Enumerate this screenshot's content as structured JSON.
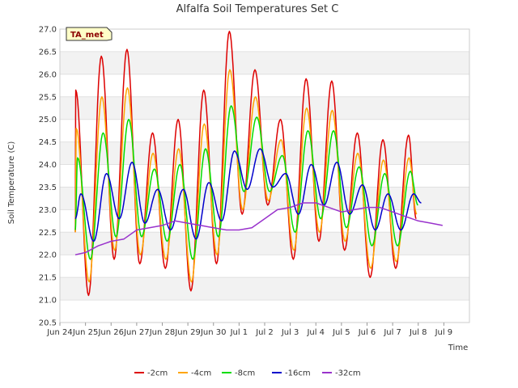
{
  "chart_data": {
    "type": "line",
    "title": "Alfalfa Soil Temperatures Set C",
    "xlabel": "Time",
    "ylabel": "Soil Temperature (C)",
    "badge": "TA_met",
    "ylim": [
      20.5,
      27.0
    ],
    "yticks": [
      "20.5",
      "21.0",
      "21.5",
      "22.0",
      "22.5",
      "23.0",
      "23.5",
      "24.0",
      "24.5",
      "25.0",
      "25.5",
      "26.0",
      "26.5",
      "27.0"
    ],
    "xlim": [
      0,
      16
    ],
    "xticks": [
      "Jun 24",
      "Jun 25",
      "Jun 26",
      "Jun 27",
      "Jun 28",
      "Jun 29",
      "Jun 30",
      "Jul 1",
      "Jul 2",
      "Jul 3",
      "Jul 4",
      "Jul 5",
      "Jul 6",
      "Jul 7",
      "Jul 8",
      "Jul 9"
    ],
    "grid": true,
    "legend_position": "bottom",
    "series": [
      {
        "name": "-2cm",
        "color": "#dd0000",
        "phase": 0.62,
        "lo": [
          20.7,
          21.1,
          21.9,
          21.8,
          21.7,
          21.2,
          21.8,
          22.9,
          23.1,
          21.9,
          22.3,
          22.1,
          21.5,
          21.7
        ],
        "hi": [
          25.65,
          26.4,
          26.55,
          24.7,
          25.0,
          25.65,
          26.95,
          26.1,
          25.0,
          25.9,
          25.85,
          24.7,
          24.55,
          24.65
        ],
        "start": 22.5,
        "end": 22.8
      },
      {
        "name": "-4cm",
        "color": "#ffa500",
        "phase": 0.64,
        "lo": [
          20.9,
          21.4,
          22.1,
          22.0,
          21.9,
          21.4,
          22.0,
          23.0,
          23.2,
          22.1,
          22.5,
          22.3,
          21.7,
          21.85
        ],
        "hi": [
          24.8,
          25.5,
          25.7,
          24.25,
          24.35,
          24.9,
          26.1,
          25.5,
          24.55,
          25.25,
          25.2,
          24.25,
          24.1,
          24.15
        ],
        "start": 22.5,
        "end": 22.9
      },
      {
        "name": "-8cm",
        "color": "#00dd00",
        "phase": 0.69,
        "lo": [
          21.5,
          21.9,
          22.4,
          22.4,
          22.3,
          21.9,
          22.4,
          23.4,
          23.4,
          22.5,
          22.8,
          22.6,
          22.2,
          22.2
        ],
        "hi": [
          24.15,
          24.7,
          25.0,
          23.9,
          24.0,
          24.35,
          25.3,
          25.05,
          24.2,
          24.75,
          24.75,
          23.95,
          23.8,
          23.85
        ],
        "start": 22.55,
        "end": 23.1
      },
      {
        "name": "-16cm",
        "color": "#0000cc",
        "phase": 0.82,
        "lo": [
          22.0,
          22.3,
          22.8,
          22.7,
          22.55,
          22.35,
          22.75,
          23.45,
          23.5,
          22.9,
          23.1,
          22.9,
          22.55,
          22.55
        ],
        "hi": [
          23.35,
          23.8,
          24.05,
          23.45,
          23.45,
          23.6,
          24.3,
          24.35,
          23.8,
          24.0,
          24.05,
          23.55,
          23.35,
          23.35
        ],
        "start": 22.8,
        "end": 23.15
      },
      {
        "name": "-32cm",
        "color": "#9932cc",
        "x": [
          0.6,
          1.0,
          1.5,
          2.0,
          2.5,
          3.0,
          3.5,
          4.0,
          4.5,
          5.0,
          5.5,
          6.0,
          6.5,
          7.0,
          7.5,
          8.0,
          8.5,
          9.0,
          9.5,
          10.0,
          10.5,
          11.0,
          11.5,
          12.0,
          12.5,
          13.0,
          13.5,
          14.0,
          14.5,
          14.95
        ],
        "y": [
          22.0,
          22.05,
          22.2,
          22.3,
          22.35,
          22.55,
          22.6,
          22.65,
          22.75,
          22.7,
          22.65,
          22.6,
          22.55,
          22.55,
          22.6,
          22.8,
          23.0,
          23.05,
          23.15,
          23.15,
          23.05,
          22.95,
          23.0,
          23.05,
          23.05,
          22.95,
          22.85,
          22.75,
          22.7,
          22.65
        ]
      }
    ]
  }
}
